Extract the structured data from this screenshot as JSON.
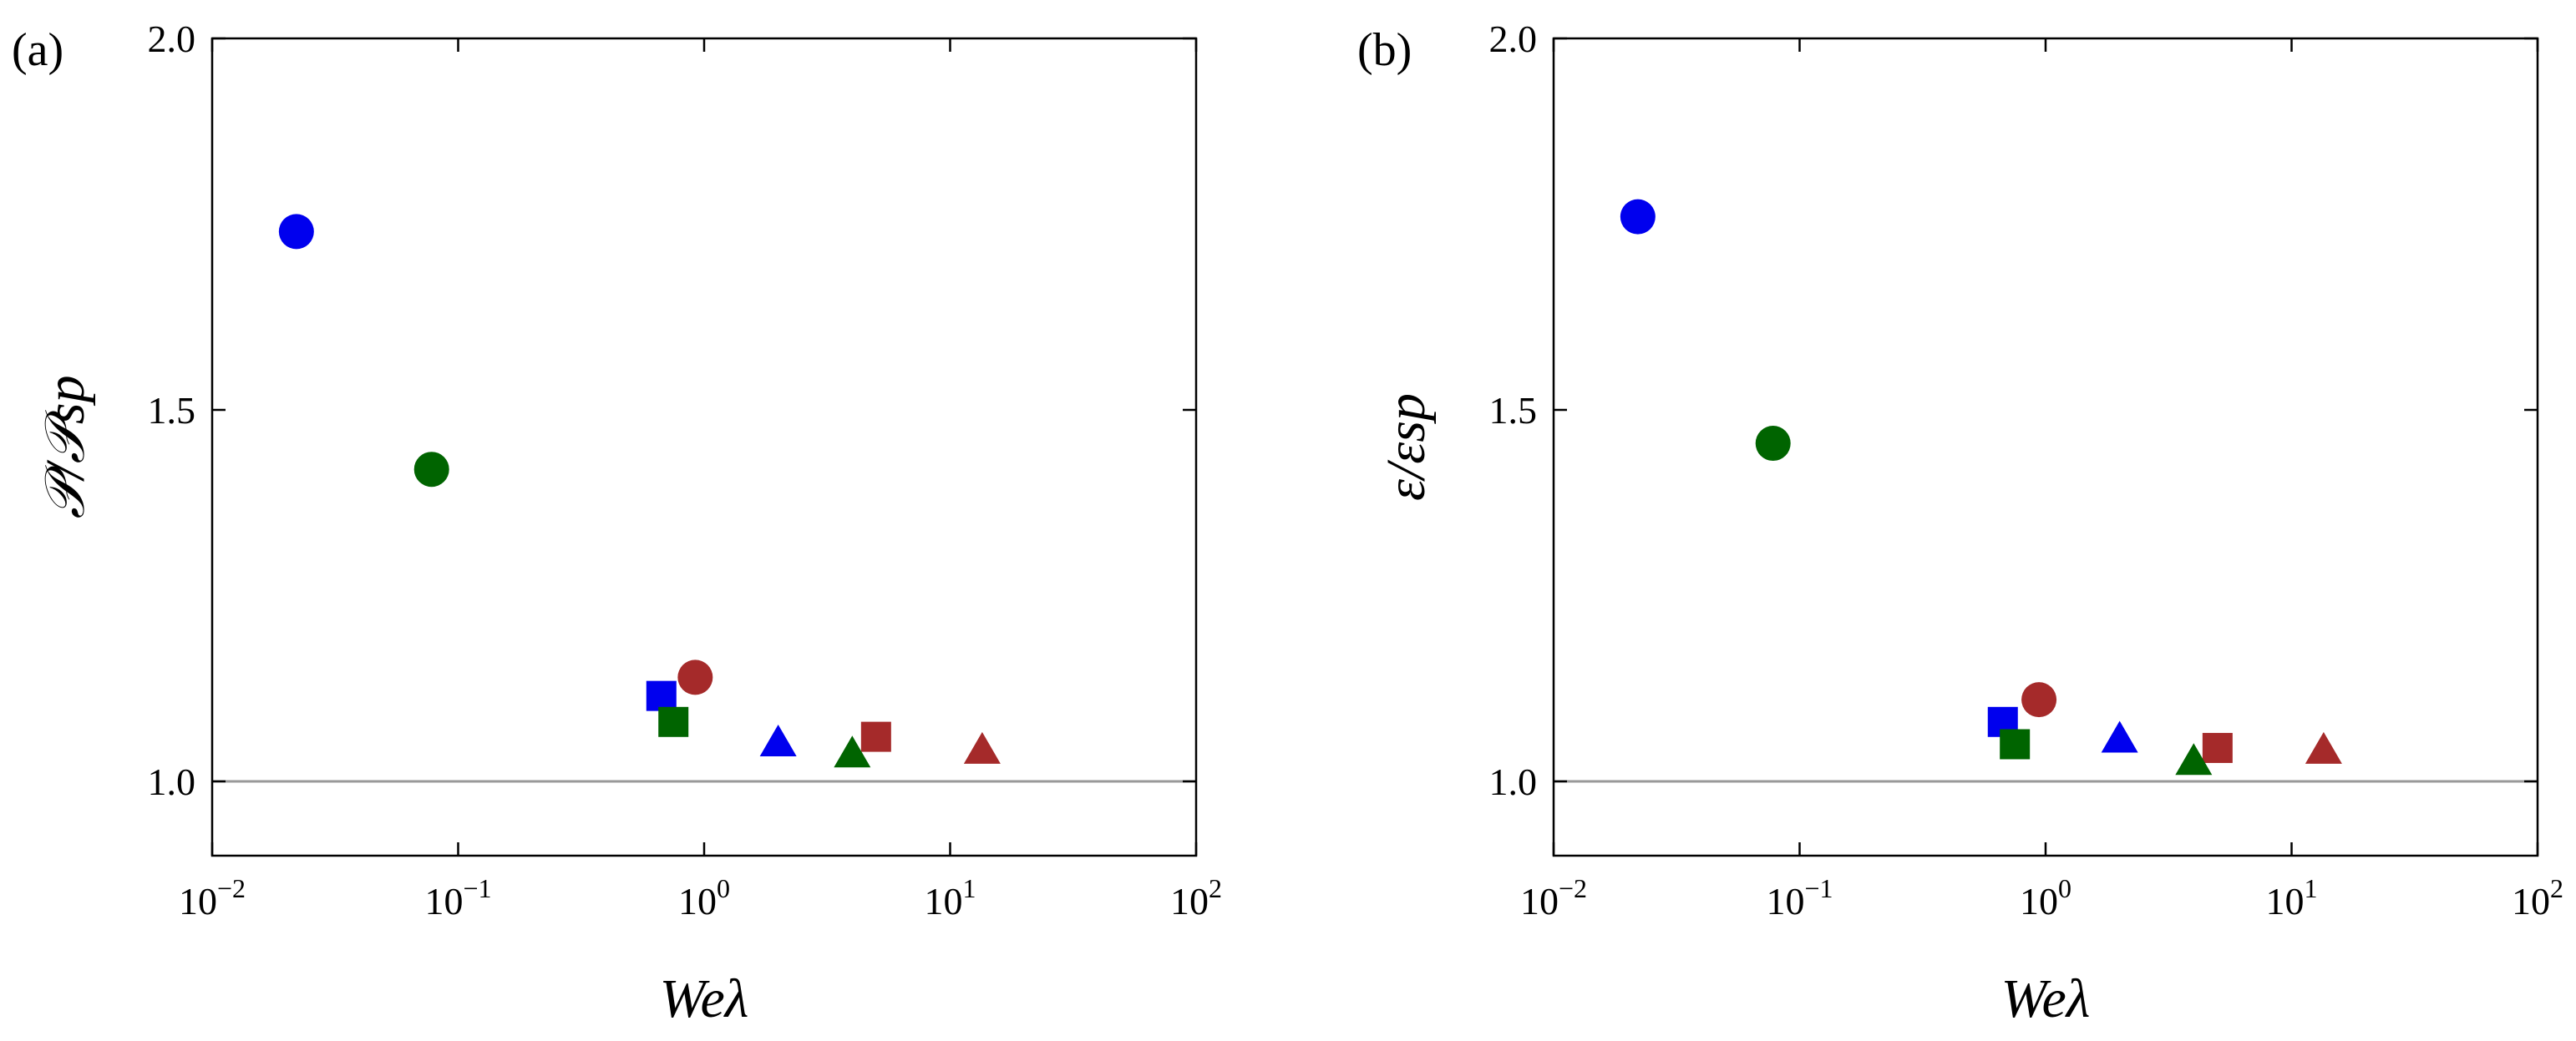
{
  "chart_data": [
    {
      "type": "scatter",
      "panel_label": "(a)",
      "xlabel": "Weλ",
      "ylabel": "𝒫/𝒫sp",
      "xscale": "log",
      "xlim": [
        0.01,
        100
      ],
      "ylim": [
        0.9,
        2.0
      ],
      "xticks": [
        {
          "value": 0.01,
          "base": "10",
          "exp": "−2"
        },
        {
          "value": 0.1,
          "base": "10",
          "exp": "−1"
        },
        {
          "value": 1,
          "base": "10",
          "exp": "0"
        },
        {
          "value": 10,
          "base": "10",
          "exp": "1"
        },
        {
          "value": 100,
          "base": "10",
          "exp": "2"
        }
      ],
      "yticks": [
        {
          "value": 1.0,
          "label": "1.0"
        },
        {
          "value": 1.5,
          "label": "1.5"
        },
        {
          "value": 2.0,
          "label": "2.0"
        }
      ],
      "reference_line": {
        "y": 1.0,
        "color": "#999999"
      },
      "grid": false,
      "points": [
        {
          "x": 0.022,
          "y": 1.74,
          "marker": "circle",
          "color": "#0000ee"
        },
        {
          "x": 0.078,
          "y": 1.42,
          "marker": "circle",
          "color": "#006400"
        },
        {
          "x": 0.92,
          "y": 1.14,
          "marker": "circle",
          "color": "#a52a2a"
        },
        {
          "x": 0.67,
          "y": 1.115,
          "marker": "square",
          "color": "#0000ee"
        },
        {
          "x": 0.75,
          "y": 1.08,
          "marker": "square",
          "color": "#006400"
        },
        {
          "x": 5.0,
          "y": 1.06,
          "marker": "square",
          "color": "#a52a2a"
        },
        {
          "x": 2.0,
          "y": 1.05,
          "marker": "triangle",
          "color": "#0000ee"
        },
        {
          "x": 4.0,
          "y": 1.035,
          "marker": "triangle",
          "color": "#006400"
        },
        {
          "x": 13.5,
          "y": 1.04,
          "marker": "triangle",
          "color": "#a52a2a"
        }
      ]
    },
    {
      "type": "scatter",
      "panel_label": "(b)",
      "xlabel": "Weλ",
      "ylabel": "ε/εsp",
      "xscale": "log",
      "xlim": [
        0.01,
        100
      ],
      "ylim": [
        0.9,
        2.0
      ],
      "xticks": [
        {
          "value": 0.01,
          "base": "10",
          "exp": "−2"
        },
        {
          "value": 0.1,
          "base": "10",
          "exp": "−1"
        },
        {
          "value": 1,
          "base": "10",
          "exp": "0"
        },
        {
          "value": 10,
          "base": "10",
          "exp": "1"
        },
        {
          "value": 100,
          "base": "10",
          "exp": "2"
        }
      ],
      "yticks": [
        {
          "value": 1.0,
          "label": "1.0"
        },
        {
          "value": 1.5,
          "label": "1.5"
        },
        {
          "value": 2.0,
          "label": "2.0"
        }
      ],
      "reference_line": {
        "y": 1.0,
        "color": "#999999"
      },
      "grid": false,
      "points": [
        {
          "x": 0.022,
          "y": 1.76,
          "marker": "circle",
          "color": "#0000ee"
        },
        {
          "x": 0.078,
          "y": 1.455,
          "marker": "circle",
          "color": "#006400"
        },
        {
          "x": 0.94,
          "y": 1.11,
          "marker": "circle",
          "color": "#a52a2a"
        },
        {
          "x": 0.67,
          "y": 1.08,
          "marker": "square",
          "color": "#0000ee"
        },
        {
          "x": 0.75,
          "y": 1.05,
          "marker": "square",
          "color": "#006400"
        },
        {
          "x": 5.0,
          "y": 1.045,
          "marker": "square",
          "color": "#a52a2a"
        },
        {
          "x": 2.0,
          "y": 1.055,
          "marker": "triangle",
          "color": "#0000ee"
        },
        {
          "x": 4.0,
          "y": 1.025,
          "marker": "triangle",
          "color": "#006400"
        },
        {
          "x": 13.5,
          "y": 1.04,
          "marker": "triangle",
          "color": "#a52a2a"
        }
      ]
    }
  ]
}
